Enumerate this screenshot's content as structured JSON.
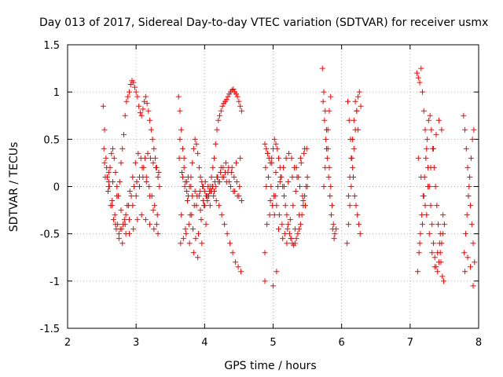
{
  "chart_data": {
    "type": "scatter",
    "title": "Day 013 of 2017, Sidereal Day-to-day VTEC variation (SDTVAR) for receiver usmx",
    "xlabel": "GPS time / hours",
    "ylabel": "SDTVAR / TECUs",
    "xlim": [
      2,
      8
    ],
    "ylim": [
      -1.5,
      1.5
    ],
    "xticks": [
      2,
      3,
      4,
      5,
      6,
      7,
      8
    ],
    "yticks": [
      -1.5,
      -1,
      -0.5,
      0,
      0.5,
      1,
      1.5
    ],
    "xtick_labels": [
      "2",
      "3",
      "4",
      "5",
      "6",
      "7",
      "8"
    ],
    "ytick_labels": [
      "-1.5",
      "-1",
      "-0.5",
      "0",
      "0.5",
      "1",
      "1.5"
    ],
    "grid": true,
    "legend": "none",
    "marker": "+",
    "color": "#ff0000",
    "series": [
      {
        "x": [
          2.52,
          2.54,
          2.56,
          2.58,
          2.6,
          2.62,
          2.64,
          2.66,
          2.68,
          2.7,
          2.72,
          2.74,
          2.76,
          2.78,
          2.8,
          2.82,
          2.84,
          2.86,
          2.88,
          2.9,
          2.92,
          2.94,
          2.96,
          2.98,
          3.0,
          3.02,
          3.04,
          3.06,
          3.08,
          3.1,
          3.12,
          3.14,
          3.16,
          3.18,
          3.2,
          3.22,
          3.24,
          3.26,
          3.28,
          3.3,
          3.32,
          3.34,
          2.53,
          2.57,
          2.61,
          2.65,
          2.69,
          2.73,
          2.77,
          2.81,
          2.85,
          2.89,
          2.93,
          2.97,
          3.01,
          3.05,
          3.09,
          3.13,
          3.17,
          3.21,
          3.25,
          3.29,
          3.33,
          2.55,
          2.59,
          2.63,
          2.67,
          2.71,
          2.75,
          2.79,
          2.83,
          2.87,
          2.91,
          2.95,
          2.99,
          3.03,
          3.07,
          3.11,
          3.15,
          3.19,
          3.23,
          3.27,
          3.31,
          2.54,
          2.6,
          2.66,
          2.72,
          2.78,
          2.84,
          2.9,
          2.96,
          3.02,
          3.08,
          3.14,
          3.2,
          3.26,
          3.32,
          2.6,
          2.65,
          2.7,
          2.75,
          2.8,
          2.85,
          2.9,
          2.95,
          3.0,
          3.05,
          3.1,
          3.15,
          3.2,
          3.25,
          3.3,
          3.62,
          3.64,
          3.66,
          3.68,
          3.7,
          3.72,
          3.74,
          3.76,
          3.78,
          3.8,
          3.82,
          3.84,
          3.86,
          3.88,
          3.9,
          3.92,
          3.94,
          3.96,
          3.98,
          4.0,
          4.02,
          4.04,
          4.06,
          4.08,
          4.1,
          4.12,
          4.14,
          4.16,
          4.18,
          4.2,
          4.22,
          4.24,
          4.26,
          4.28,
          4.3,
          4.32,
          4.34,
          4.36,
          4.38,
          4.4,
          4.42,
          4.44,
          4.46,
          4.48,
          4.5,
          4.52,
          4.54,
          3.63,
          3.67,
          3.71,
          3.75,
          3.79,
          3.83,
          3.87,
          3.91,
          3.95,
          3.99,
          4.03,
          4.07,
          4.11,
          4.15,
          4.19,
          4.23,
          4.27,
          4.31,
          4.35,
          4.39,
          4.43,
          4.47,
          4.51,
          3.65,
          3.69,
          3.73,
          3.77,
          3.81,
          3.85,
          3.89,
          3.93,
          3.97,
          4.01,
          4.05,
          4.09,
          4.13,
          4.17,
          4.21,
          4.25,
          4.29,
          4.33,
          4.37,
          4.41,
          4.45,
          4.49,
          4.53,
          3.64,
          3.7,
          3.76,
          3.82,
          3.88,
          3.94,
          4.0,
          4.06,
          4.12,
          4.18,
          4.24,
          4.3,
          4.36,
          4.42,
          4.48,
          4.54,
          3.66,
          3.72,
          3.78,
          3.84,
          3.9,
          3.96,
          4.02,
          4.08,
          4.14,
          4.2,
          4.26,
          4.32,
          4.38,
          4.44,
          4.5,
          3.68,
          3.74,
          3.8,
          3.86,
          3.92,
          3.98,
          4.04,
          4.1,
          4.16,
          4.22,
          4.28,
          4.34,
          4.4,
          4.46,
          4.52,
          4.88,
          4.9,
          4.92,
          4.94,
          4.96,
          4.98,
          5.0,
          5.02,
          5.04,
          5.06,
          5.08,
          5.1,
          5.12,
          5.14,
          5.16,
          5.18,
          5.2,
          5.22,
          5.24,
          5.26,
          5.28,
          5.3,
          5.32,
          5.34,
          5.36,
          5.38,
          5.4,
          5.42,
          5.44,
          5.46,
          5.48,
          5.5,
          4.89,
          4.93,
          4.97,
          5.01,
          5.05,
          5.09,
          5.13,
          5.17,
          5.21,
          5.25,
          5.29,
          5.33,
          5.37,
          5.41,
          5.45,
          5.49,
          4.91,
          4.95,
          4.99,
          5.03,
          5.07,
          5.11,
          5.15,
          5.19,
          5.23,
          5.27,
          5.31,
          5.35,
          5.39,
          5.43,
          5.47,
          4.9,
          4.96,
          5.02,
          5.08,
          5.14,
          5.2,
          5.26,
          5.32,
          5.38,
          5.44,
          5.5,
          4.92,
          4.98,
          5.04,
          5.1,
          5.16,
          5.22,
          5.28,
          5.34,
          5.4,
          5.46,
          4.88,
          4.88,
          5.0,
          5.05,
          5.72,
          5.74,
          5.76,
          5.78,
          5.8,
          5.82,
          5.84,
          5.86,
          5.88,
          5.9,
          5.92,
          5.73,
          5.75,
          5.77,
          5.79,
          5.81,
          5.83,
          5.85,
          5.87,
          5.89,
          5.74,
          5.76,
          5.78,
          5.8,
          5.82,
          5.84,
          6.08,
          6.1,
          6.12,
          6.14,
          6.16,
          6.18,
          6.2,
          6.22,
          6.24,
          6.26,
          6.28,
          6.09,
          6.11,
          6.13,
          6.15,
          6.17,
          6.19,
          6.21,
          6.23,
          6.25,
          6.27,
          6.1,
          6.12,
          6.14,
          6.16,
          6.18,
          6.2,
          6.22,
          6.24,
          7.1,
          7.12,
          7.14,
          7.16,
          7.18,
          7.2,
          7.22,
          7.24,
          7.26,
          7.28,
          7.3,
          7.32,
          7.34,
          7.36,
          7.38,
          7.4,
          7.42,
          7.44,
          7.46,
          7.48,
          7.5,
          7.11,
          7.13,
          7.15,
          7.17,
          7.19,
          7.21,
          7.23,
          7.25,
          7.27,
          7.29,
          7.31,
          7.33,
          7.35,
          7.37,
          7.39,
          7.41,
          7.43,
          7.45,
          7.47,
          7.49,
          7.12,
          7.16,
          7.2,
          7.24,
          7.28,
          7.32,
          7.36,
          7.4,
          7.44,
          7.48,
          7.14,
          7.18,
          7.22,
          7.26,
          7.3,
          7.34,
          7.38,
          7.42,
          7.46,
          7.78,
          7.8,
          7.82,
          7.84,
          7.86,
          7.88,
          7.9,
          7.92,
          7.94,
          7.79,
          7.81,
          7.83,
          7.85,
          7.87,
          7.89,
          7.91,
          7.93,
          7.8,
          7.84,
          7.88,
          7.92
        ],
        "y": [
          0.85,
          0.6,
          0.3,
          0.1,
          0.05,
          0.2,
          0.35,
          0.4,
          0.3,
          0.15,
          0.0,
          -0.1,
          0.05,
          0.25,
          0.4,
          0.55,
          0.75,
          0.9,
          0.95,
          1.0,
          1.08,
          1.12,
          1.1,
          1.05,
          1.0,
          0.95,
          0.85,
          0.78,
          0.75,
          0.82,
          0.9,
          0.95,
          0.88,
          0.8,
          0.7,
          0.6,
          0.5,
          0.4,
          0.3,
          0.2,
          0.1,
          0.0,
          0.4,
          0.2,
          0.0,
          -0.15,
          -0.3,
          -0.4,
          -0.45,
          -0.4,
          -0.3,
          -0.2,
          -0.1,
          0.0,
          0.05,
          0.1,
          0.2,
          0.3,
          0.35,
          0.3,
          0.25,
          0.2,
          0.15,
          0.1,
          -0.05,
          -0.2,
          -0.35,
          -0.45,
          -0.5,
          -0.45,
          -0.35,
          -0.2,
          -0.05,
          0.1,
          0.25,
          0.35,
          0.3,
          0.2,
          0.1,
          0.0,
          -0.1,
          -0.2,
          -0.3,
          0.25,
          0.15,
          0.05,
          -0.1,
          -0.25,
          -0.4,
          -0.5,
          -0.45,
          -0.35,
          -0.3,
          -0.35,
          -0.4,
          -0.45,
          -0.5,
          0.0,
          -0.2,
          -0.4,
          -0.55,
          -0.6,
          -0.5,
          -0.35,
          -0.2,
          -0.1,
          0.0,
          0.1,
          0.05,
          -0.1,
          -0.25,
          -0.4,
          0.95,
          0.8,
          0.6,
          0.4,
          0.2,
          0.05,
          -0.05,
          -0.1,
          0.0,
          0.1,
          0.25,
          0.4,
          0.5,
          0.45,
          0.35,
          0.2,
          0.1,
          0.05,
          0.0,
          -0.05,
          -0.1,
          -0.15,
          -0.1,
          0.0,
          0.1,
          0.2,
          0.3,
          0.45,
          0.6,
          0.7,
          0.75,
          0.8,
          0.85,
          0.88,
          0.9,
          0.92,
          0.95,
          0.98,
          1.0,
          1.02,
          1.03,
          1.0,
          0.98,
          0.95,
          0.9,
          0.85,
          0.8,
          0.3,
          0.15,
          0.0,
          -0.15,
          -0.3,
          -0.45,
          -0.55,
          -0.5,
          -0.35,
          -0.2,
          -0.1,
          -0.05,
          0.0,
          0.05,
          0.1,
          0.15,
          0.2,
          0.25,
          0.2,
          0.15,
          0.1,
          0.05,
          0.0,
          -0.6,
          -0.55,
          -0.5,
          -0.4,
          -0.3,
          -0.2,
          -0.1,
          -0.05,
          0.0,
          0.05,
          0.0,
          -0.05,
          -0.1,
          -0.15,
          -0.2,
          -0.3,
          -0.4,
          -0.5,
          -0.6,
          -0.7,
          -0.8,
          -0.85,
          -0.9,
          0.5,
          0.3,
          0.1,
          -0.1,
          -0.2,
          -0.25,
          -0.2,
          -0.1,
          0.0,
          0.1,
          0.2,
          0.15,
          0.05,
          -0.05,
          -0.1,
          -0.15,
          -0.3,
          -0.45,
          -0.6,
          -0.7,
          -0.75,
          -0.6,
          -0.4,
          -0.2,
          -0.05,
          0.05,
          0.1,
          0.05,
          0.0,
          -0.05,
          -0.1,
          0.1,
          0.05,
          0.0,
          -0.05,
          -0.1,
          -0.15,
          -0.1,
          -0.05,
          0.0,
          0.05,
          0.1,
          0.15,
          0.2,
          0.25,
          0.3,
          0.45,
          0.4,
          0.35,
          0.3,
          0.25,
          0.3,
          0.4,
          0.5,
          0.45,
          0.4,
          0.3,
          0.2,
          0.1,
          0.0,
          -0.1,
          -0.2,
          -0.3,
          -0.4,
          -0.5,
          -0.55,
          -0.6,
          -0.62,
          -0.6,
          -0.55,
          -0.5,
          -0.45,
          -0.4,
          -0.3,
          -0.2,
          -0.1,
          0.0,
          0.1,
          0.2,
          0.1,
          0.0,
          -0.1,
          -0.2,
          -0.3,
          -0.4,
          -0.5,
          -0.45,
          -0.35,
          -0.2,
          -0.05,
          0.1,
          0.25,
          0.35,
          0.4,
          -0.4,
          -0.3,
          -0.2,
          -0.1,
          0.0,
          0.1,
          0.2,
          0.3,
          0.35,
          0.3,
          0.2,
          0.1,
          0.0,
          -0.1,
          -0.2,
          0.0,
          -0.15,
          -0.3,
          -0.45,
          -0.55,
          -0.6,
          -0.55,
          -0.45,
          -0.3,
          -0.15,
          0.0,
          0.35,
          0.25,
          0.15,
          0.05,
          0.0,
          0.05,
          0.1,
          0.2,
          0.3,
          0.4,
          -0.7,
          -1.0,
          -1.05,
          -0.9,
          1.25,
          1.0,
          0.8,
          0.6,
          0.4,
          0.2,
          0.0,
          -0.2,
          -0.4,
          -0.5,
          -0.45,
          0.9,
          0.7,
          0.5,
          0.3,
          0.1,
          -0.1,
          -0.3,
          -0.45,
          -0.55,
          0.0,
          0.2,
          0.4,
          0.6,
          0.8,
          0.95,
          -0.6,
          -0.4,
          -0.2,
          0.0,
          0.2,
          0.4,
          0.6,
          0.8,
          0.95,
          1.0,
          0.85,
          0.9,
          0.7,
          0.5,
          0.3,
          0.1,
          -0.1,
          -0.2,
          -0.3,
          -0.4,
          -0.5,
          -0.1,
          0.1,
          0.3,
          0.5,
          0.7,
          0.9,
          0.8,
          0.6,
          1.2,
          1.15,
          1.1,
          1.25,
          1.0,
          0.8,
          0.6,
          0.4,
          0.2,
          0.0,
          -0.2,
          -0.4,
          -0.6,
          -0.75,
          -0.85,
          -0.9,
          -0.8,
          -0.7,
          -0.6,
          -0.5,
          -0.4,
          -0.9,
          -0.7,
          -0.5,
          -0.3,
          -0.1,
          0.1,
          0.3,
          0.5,
          0.7,
          0.75,
          0.6,
          0.4,
          0.2,
          0.0,
          -0.2,
          -0.4,
          -0.6,
          -0.8,
          -0.95,
          -1.0,
          0.3,
          0.1,
          -0.1,
          -0.3,
          -0.5,
          -0.7,
          -0.85,
          -0.7,
          -0.5,
          -0.3,
          -0.6,
          -0.4,
          -0.2,
          0.0,
          0.2,
          0.4,
          0.55,
          0.7,
          0.6,
          0.75,
          0.6,
          0.4,
          0.2,
          0.0,
          -0.2,
          -0.4,
          -0.6,
          -0.8,
          -0.7,
          -0.5,
          -0.3,
          -0.1,
          0.1,
          0.3,
          0.5,
          0.6,
          -0.9,
          -0.75,
          -0.85,
          -1.05
        ]
      }
    ]
  }
}
